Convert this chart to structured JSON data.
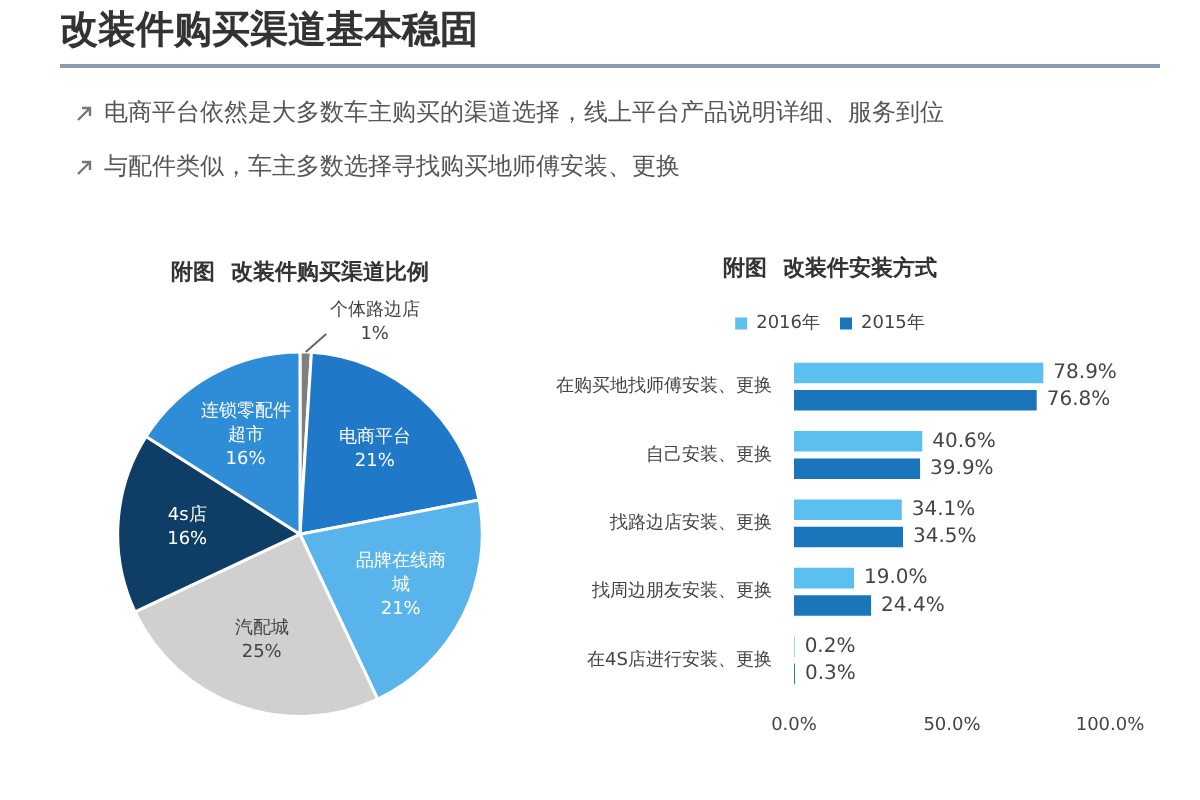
{
  "chart_data": [
    {
      "type": "other",
      "title": "改装件购买渠道基本稳固",
      "annotations": [
        "电商平台依然是大多数车主购买的渠道选择，线上平台产品说明详细、服务到位",
        "与配件类似，车主多数选择寻找购买地师傅安装、更换"
      ]
    },
    {
      "type": "pie",
      "title": "附图  改装件购买渠道比例",
      "categories": [
        "个体路边店",
        "电商平台",
        "品牌在线商城",
        "汽配城",
        "4s店",
        "连锁零配件超市"
      ],
      "values": [
        1,
        21,
        21,
        25,
        16,
        16
      ],
      "colors": [
        "#7f7f7f",
        "#1f78c8",
        "#5ab4ec",
        "#d0d0d0",
        "#0e3e66",
        "#2e8dd6"
      ],
      "value_labels": [
        "1%",
        "21%",
        "21%",
        "25%",
        "16%",
        "16%"
      ]
    },
    {
      "type": "bar",
      "orientation": "horizontal",
      "title": "附图  改装件安装方式",
      "legend": "top",
      "categories": [
        "在购买地找师傅安装、更换",
        "自己安装、更换",
        "找路边店安装、更换",
        "找周边朋友安装、更换",
        "在4S店进行安装、更换"
      ],
      "xlim": [
        0,
        100
      ],
      "xticks": [
        {
          "value": 0,
          "label": "0.0%"
        },
        {
          "value": 50,
          "label": "50.0%"
        },
        {
          "value": 100,
          "label": "100.0%"
        }
      ],
      "series": [
        {
          "name": "2016年",
          "color": "#5bc0f0",
          "values": [
            78.9,
            40.6,
            34.1,
            19.0,
            0.2
          ],
          "value_labels": [
            "78.9%",
            "40.6%",
            "34.1%",
            "19.0%",
            "0.2%"
          ]
        },
        {
          "name": "2015年",
          "color": "#1a75bb",
          "values": [
            76.8,
            39.9,
            34.5,
            24.4,
            0.3
          ],
          "value_labels": [
            "76.8%",
            "39.9%",
            "34.5%",
            "24.4%",
            "0.3%"
          ]
        }
      ]
    }
  ]
}
